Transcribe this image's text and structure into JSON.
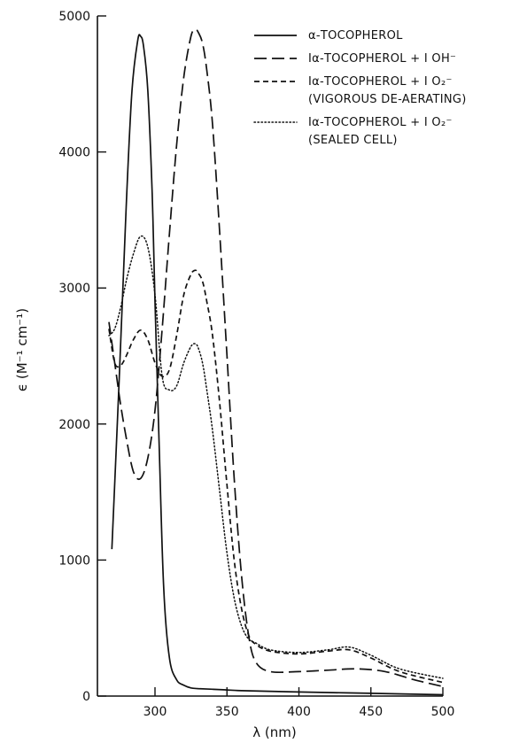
{
  "chart_data": {
    "type": "line",
    "xlabel": "λ (nm)",
    "ylabel": "ϵ (M⁻¹ cm⁻¹)",
    "xlim": [
      260,
      500
    ],
    "ylim": [
      0,
      5000
    ],
    "xticks": [
      300,
      350,
      400,
      450,
      500
    ],
    "yticks": [
      0,
      1000,
      2000,
      3000,
      4000,
      5000
    ],
    "legend_position": "top-right",
    "series": [
      {
        "name": "α-TOCOPHEROL",
        "style": "solid",
        "x": [
          270,
          275,
          280,
          284,
          288,
          290,
          292,
          295,
          298,
          300,
          303,
          306,
          310,
          315,
          320,
          325,
          330,
          340,
          350,
          360,
          400,
          450,
          500
        ],
        "y": [
          1080,
          2300,
          3600,
          4450,
          4820,
          4850,
          4780,
          4450,
          3700,
          2900,
          1800,
          800,
          280,
          120,
          80,
          60,
          55,
          50,
          45,
          40,
          30,
          20,
          10
        ]
      },
      {
        "name": "Iα-TOCOPHEROL + I OH⁻",
        "style": "dashed",
        "x": [
          268,
          272,
          276,
          280,
          285,
          290,
          295,
          300,
          305,
          310,
          315,
          320,
          325,
          328,
          330,
          333,
          336,
          340,
          345,
          350,
          355,
          360,
          365,
          370,
          380,
          400,
          420,
          440,
          460,
          480,
          500
        ],
        "y": [
          2750,
          2450,
          2150,
          1900,
          1650,
          1600,
          1750,
          2100,
          2700,
          3400,
          4050,
          4550,
          4850,
          4900,
          4880,
          4800,
          4600,
          4200,
          3400,
          2500,
          1600,
          900,
          450,
          250,
          180,
          180,
          190,
          200,
          180,
          120,
          70
        ]
      },
      {
        "name": "Iα-TOCOPHEROL + I O₂⁻",
        "note": "(VIGOROUS DE-AERATING)",
        "style": "short-dashed",
        "x": [
          268,
          272,
          276,
          280,
          285,
          290,
          295,
          300,
          305,
          310,
          315,
          320,
          325,
          328,
          330,
          333,
          336,
          340,
          345,
          350,
          355,
          360,
          365,
          370,
          380,
          400,
          420,
          435,
          450,
          470,
          500
        ],
        "y": [
          2700,
          2450,
          2430,
          2500,
          2620,
          2690,
          2620,
          2450,
          2350,
          2400,
          2650,
          2950,
          3100,
          3130,
          3110,
          3050,
          2900,
          2650,
          2150,
          1550,
          1000,
          650,
          450,
          380,
          330,
          310,
          330,
          340,
          280,
          180,
          100
        ]
      },
      {
        "name": "Iα-TOCOPHEROL + I O₂⁻",
        "note": "(SEALED CELL)",
        "style": "dotted",
        "x": [
          268,
          272,
          276,
          280,
          285,
          290,
          295,
          300,
          305,
          310,
          315,
          320,
          325,
          328,
          330,
          333,
          336,
          340,
          345,
          350,
          355,
          360,
          365,
          370,
          380,
          400,
          420,
          435,
          450,
          470,
          500
        ],
        "y": [
          2650,
          2700,
          2850,
          3050,
          3250,
          3380,
          3300,
          2950,
          2350,
          2250,
          2280,
          2450,
          2570,
          2590,
          2560,
          2450,
          2250,
          1950,
          1500,
          1050,
          720,
          520,
          420,
          390,
          340,
          320,
          340,
          360,
          300,
          200,
          130
        ]
      }
    ]
  }
}
